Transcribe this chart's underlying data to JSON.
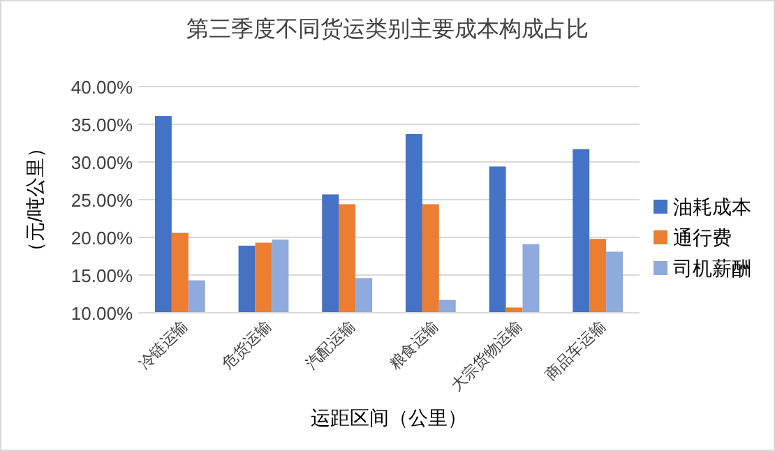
{
  "chart_data": {
    "type": "bar",
    "title": "第三季度不同货运类别主要成本构成占比",
    "xlabel": "运距区间（公里）",
    "ylabel": "（元/吨公里）",
    "categories": [
      "冷链运输",
      "危货运输",
      "汽配运输",
      "粮食运输",
      "大宗货物运输",
      "商品车运输"
    ],
    "series": [
      {
        "name": "油耗成本",
        "color": "#4472c4",
        "values": [
          36.1,
          18.9,
          25.7,
          33.7,
          29.4,
          31.7
        ]
      },
      {
        "name": "通行费",
        "color": "#ed7d31",
        "values": [
          20.6,
          19.3,
          24.4,
          24.4,
          10.7,
          19.8
        ]
      },
      {
        "name": "司机薪酬",
        "color": "#8faadc",
        "values": [
          14.3,
          19.7,
          14.6,
          11.7,
          19.1,
          18.1
        ]
      }
    ],
    "ylim": [
      10,
      40
    ],
    "yticks": [
      {
        "value": 10,
        "label": "10.00%"
      },
      {
        "value": 15,
        "label": "15.00%"
      },
      {
        "value": 20,
        "label": "20.00%"
      },
      {
        "value": 25,
        "label": "25.00%"
      },
      {
        "value": 30,
        "label": "30.00%"
      },
      {
        "value": 35,
        "label": "35.00%"
      },
      {
        "value": 40,
        "label": "40.00%"
      }
    ],
    "grid": "y",
    "legend": "right"
  }
}
